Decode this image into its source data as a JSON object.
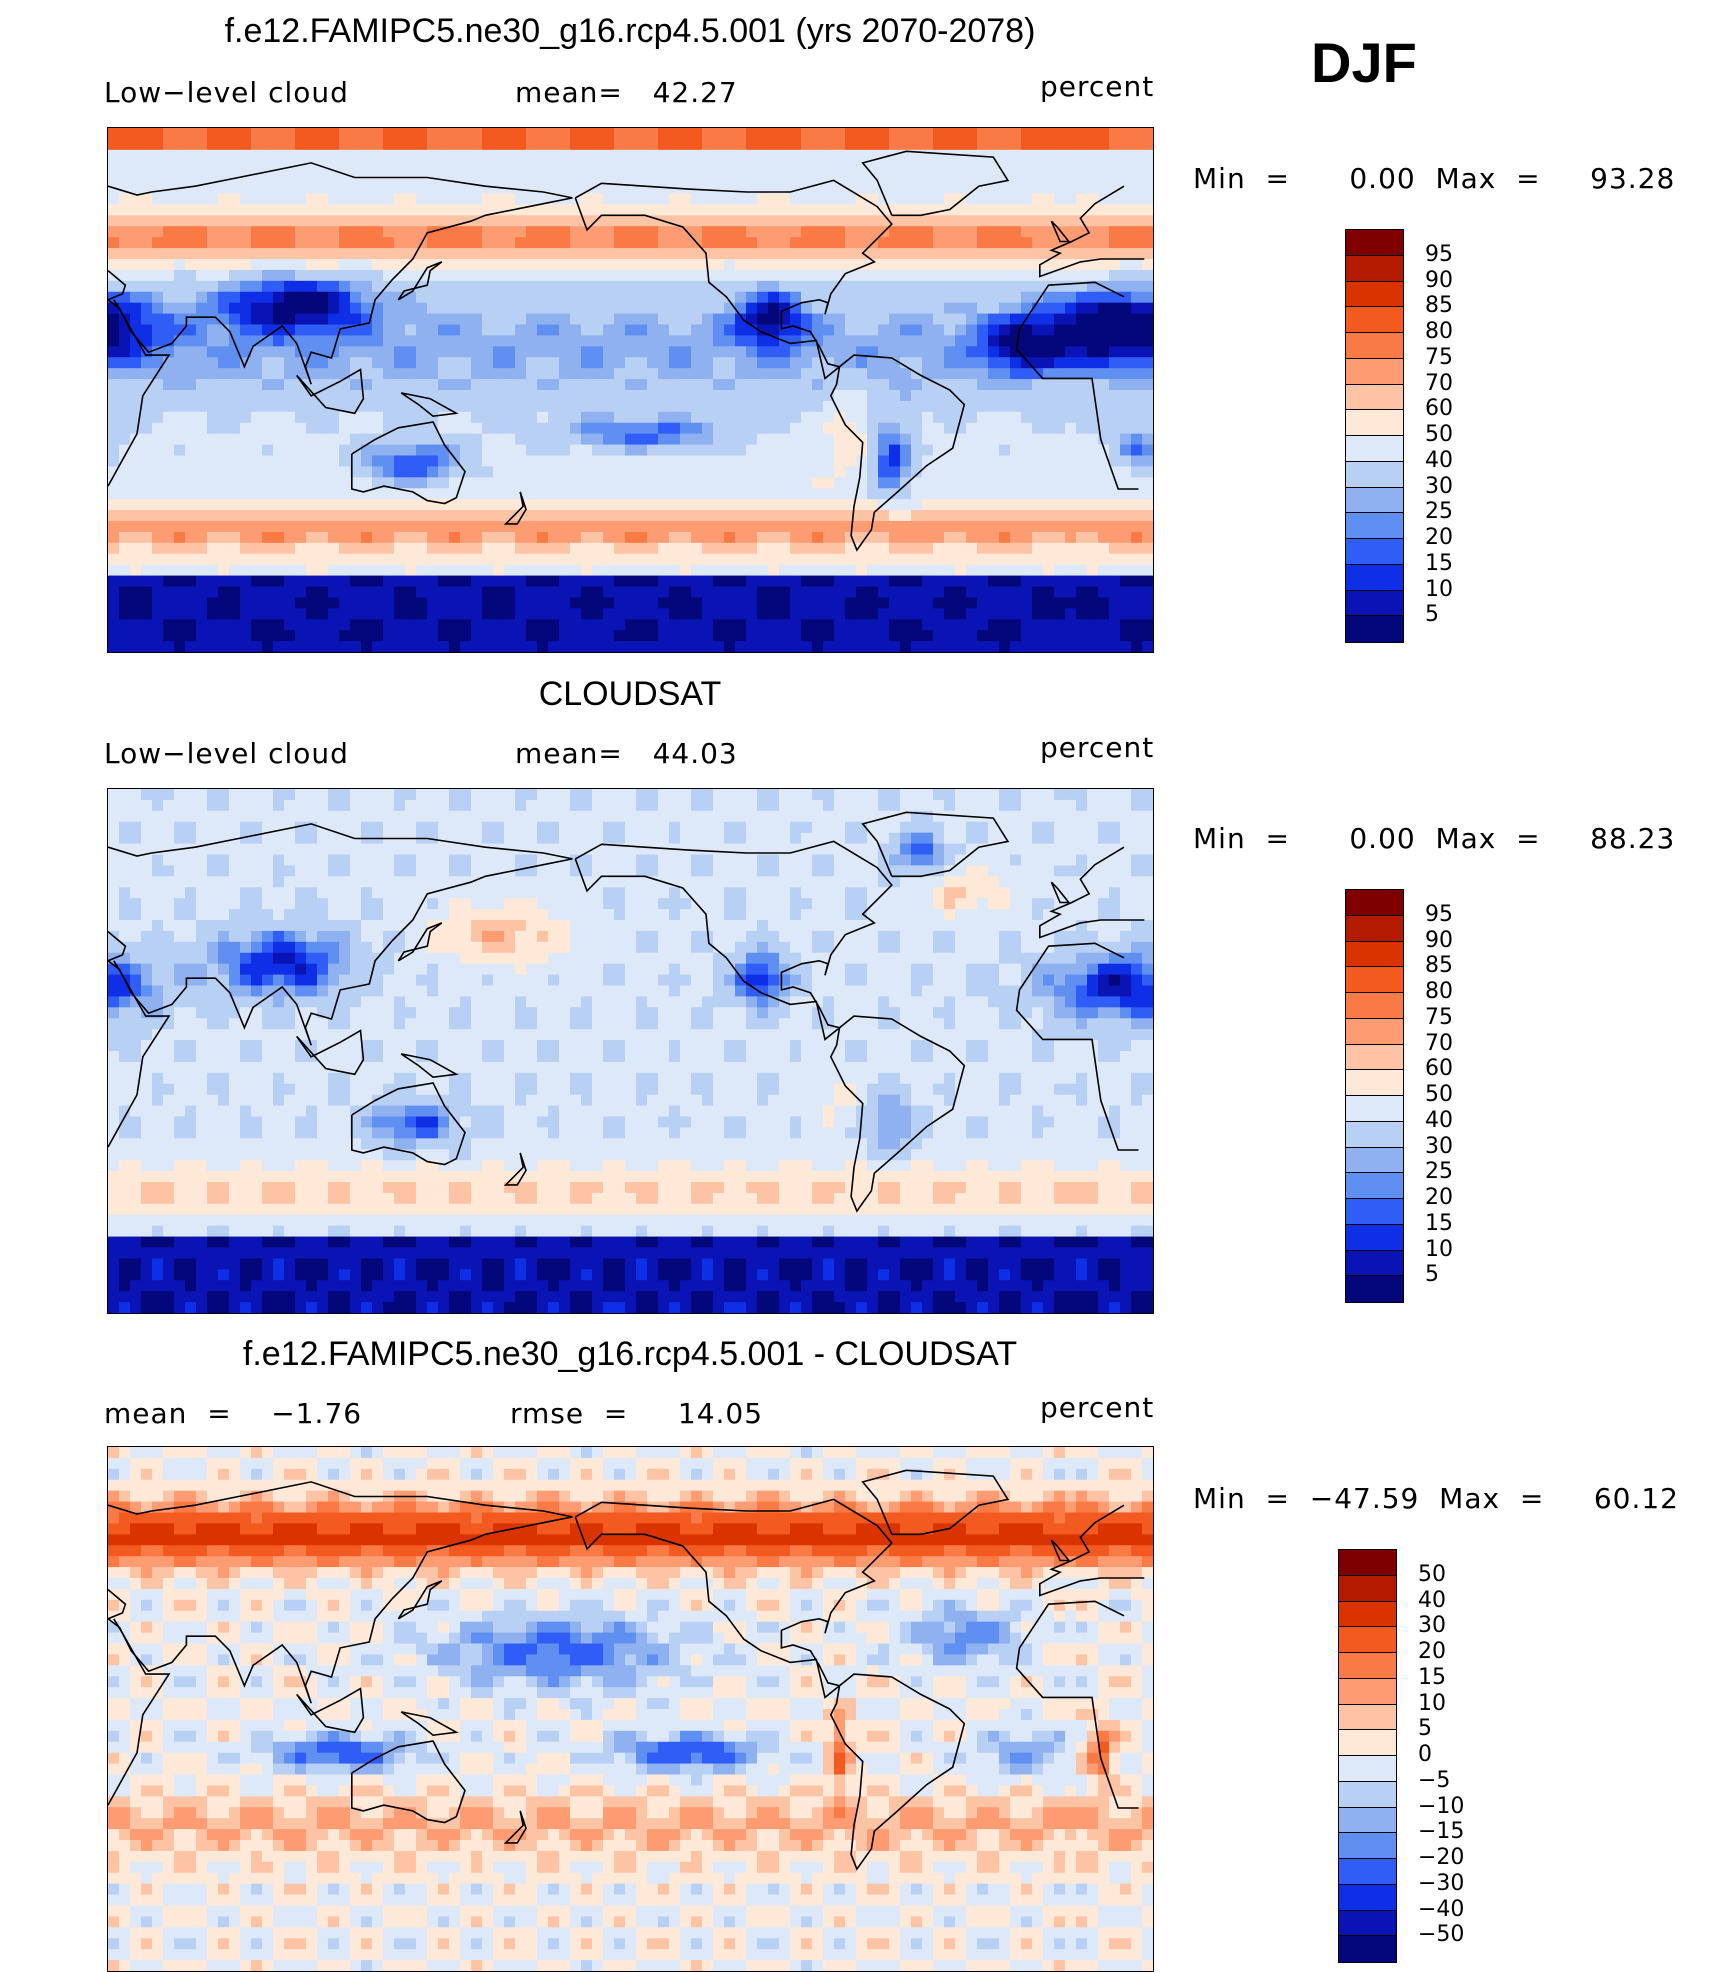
{
  "season": "DJF",
  "chart_data": [
    {
      "type": "heatmap",
      "title": "f.e12.FAMIPC5.ne30_g16.rcp4.5.001 (yrs 2070-2078)",
      "left_label": "Low−level cloud",
      "center_label": "mean=   42.27",
      "units": "percent",
      "min_max": "Min  =      0.00  Max  =     93.28",
      "colorbar_levels": [
        "95",
        "90",
        "85",
        "80",
        "75",
        "70",
        "60",
        "50",
        "40",
        "30",
        "25",
        "20",
        "15",
        "10",
        "5"
      ],
      "colorbar_colors": [
        "#7f0000",
        "#b31a00",
        "#d93300",
        "#f25a1f",
        "#fa7a45",
        "#fd9c72",
        "#fdc3a5",
        "#fee9d9",
        "#dde9f8",
        "#b9d0f5",
        "#8fb1f0",
        "#5f8ff0",
        "#2f5df5",
        "#0f2fe6",
        "#0a14b4",
        "#04077a"
      ]
    },
    {
      "type": "heatmap",
      "title": "CLOUDSAT",
      "left_label": "Low−level cloud",
      "center_label": "mean=   44.03",
      "units": "percent",
      "min_max": "Min  =      0.00  Max  =     88.23",
      "colorbar_levels": [
        "95",
        "90",
        "85",
        "80",
        "75",
        "70",
        "60",
        "50",
        "40",
        "30",
        "25",
        "20",
        "15",
        "10",
        "5"
      ],
      "colorbar_colors": [
        "#7f0000",
        "#b31a00",
        "#d93300",
        "#f25a1f",
        "#fa7a45",
        "#fd9c72",
        "#fdc3a5",
        "#fee9d9",
        "#dde9f8",
        "#b9d0f5",
        "#8fb1f0",
        "#5f8ff0",
        "#2f5df5",
        "#0f2fe6",
        "#0a14b4",
        "#04077a"
      ]
    },
    {
      "type": "heatmap",
      "title": "f.e12.FAMIPC5.ne30_g16.rcp4.5.001 - CLOUDSAT",
      "left_label": "mean  =    −1.76",
      "center_label": "rmse  =     14.05",
      "units": "percent",
      "min_max": "Min  =  −47.59  Max  =     60.12",
      "colorbar_levels": [
        "50",
        "40",
        "30",
        "20",
        "15",
        "10",
        "5",
        "0",
        "−5",
        "−10",
        "−15",
        "−20",
        "−30",
        "−40",
        "−50"
      ],
      "colorbar_colors": [
        "#7f0000",
        "#b31a00",
        "#d93300",
        "#f25a1f",
        "#fa7a45",
        "#fd9c72",
        "#fdc3a5",
        "#fee9d9",
        "#dde9f8",
        "#b9d0f5",
        "#8fb1f0",
        "#5f8ff0",
        "#2f5df5",
        "#0f2fe6",
        "#0a14b4",
        "#04077a"
      ]
    }
  ]
}
